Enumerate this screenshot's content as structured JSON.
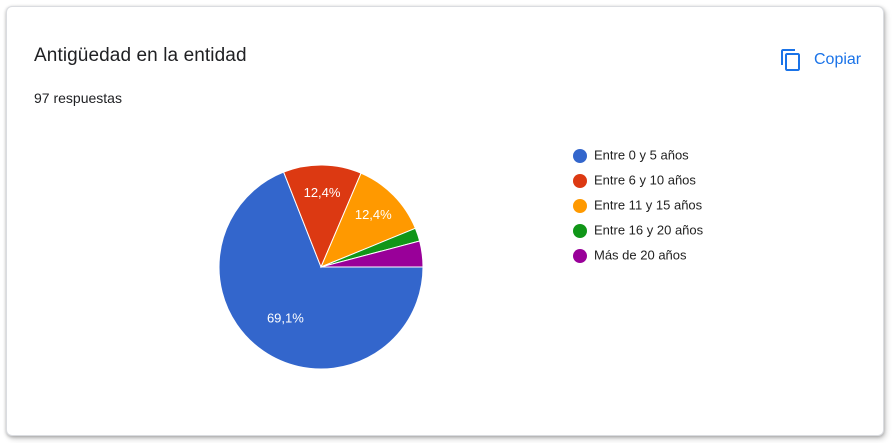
{
  "card": {
    "title": "Antigüedad en la entidad",
    "responses": "97 respuestas",
    "copy_label": "Copiar",
    "copy_icon": "copy-icon",
    "accent_color": "#1a73e8"
  },
  "chart_data": {
    "type": "pie",
    "title": "Antigüedad en la entidad",
    "total_responses": 97,
    "labels": [
      "Entre 0 y 5 años",
      "Entre 6 y 10 años",
      "Entre 11 y 15 años",
      "Entre 16 y 20 años",
      "Más de 20 años"
    ],
    "values": [
      69.1,
      12.4,
      12.4,
      2.1,
      4.1
    ],
    "value_labels": [
      "69,1%",
      "12,4%",
      "12,4%",
      "",
      ""
    ],
    "colors": [
      "#3366cc",
      "#dc3912",
      "#ff9900",
      "#109618",
      "#990099"
    ],
    "legend_position": "right"
  }
}
